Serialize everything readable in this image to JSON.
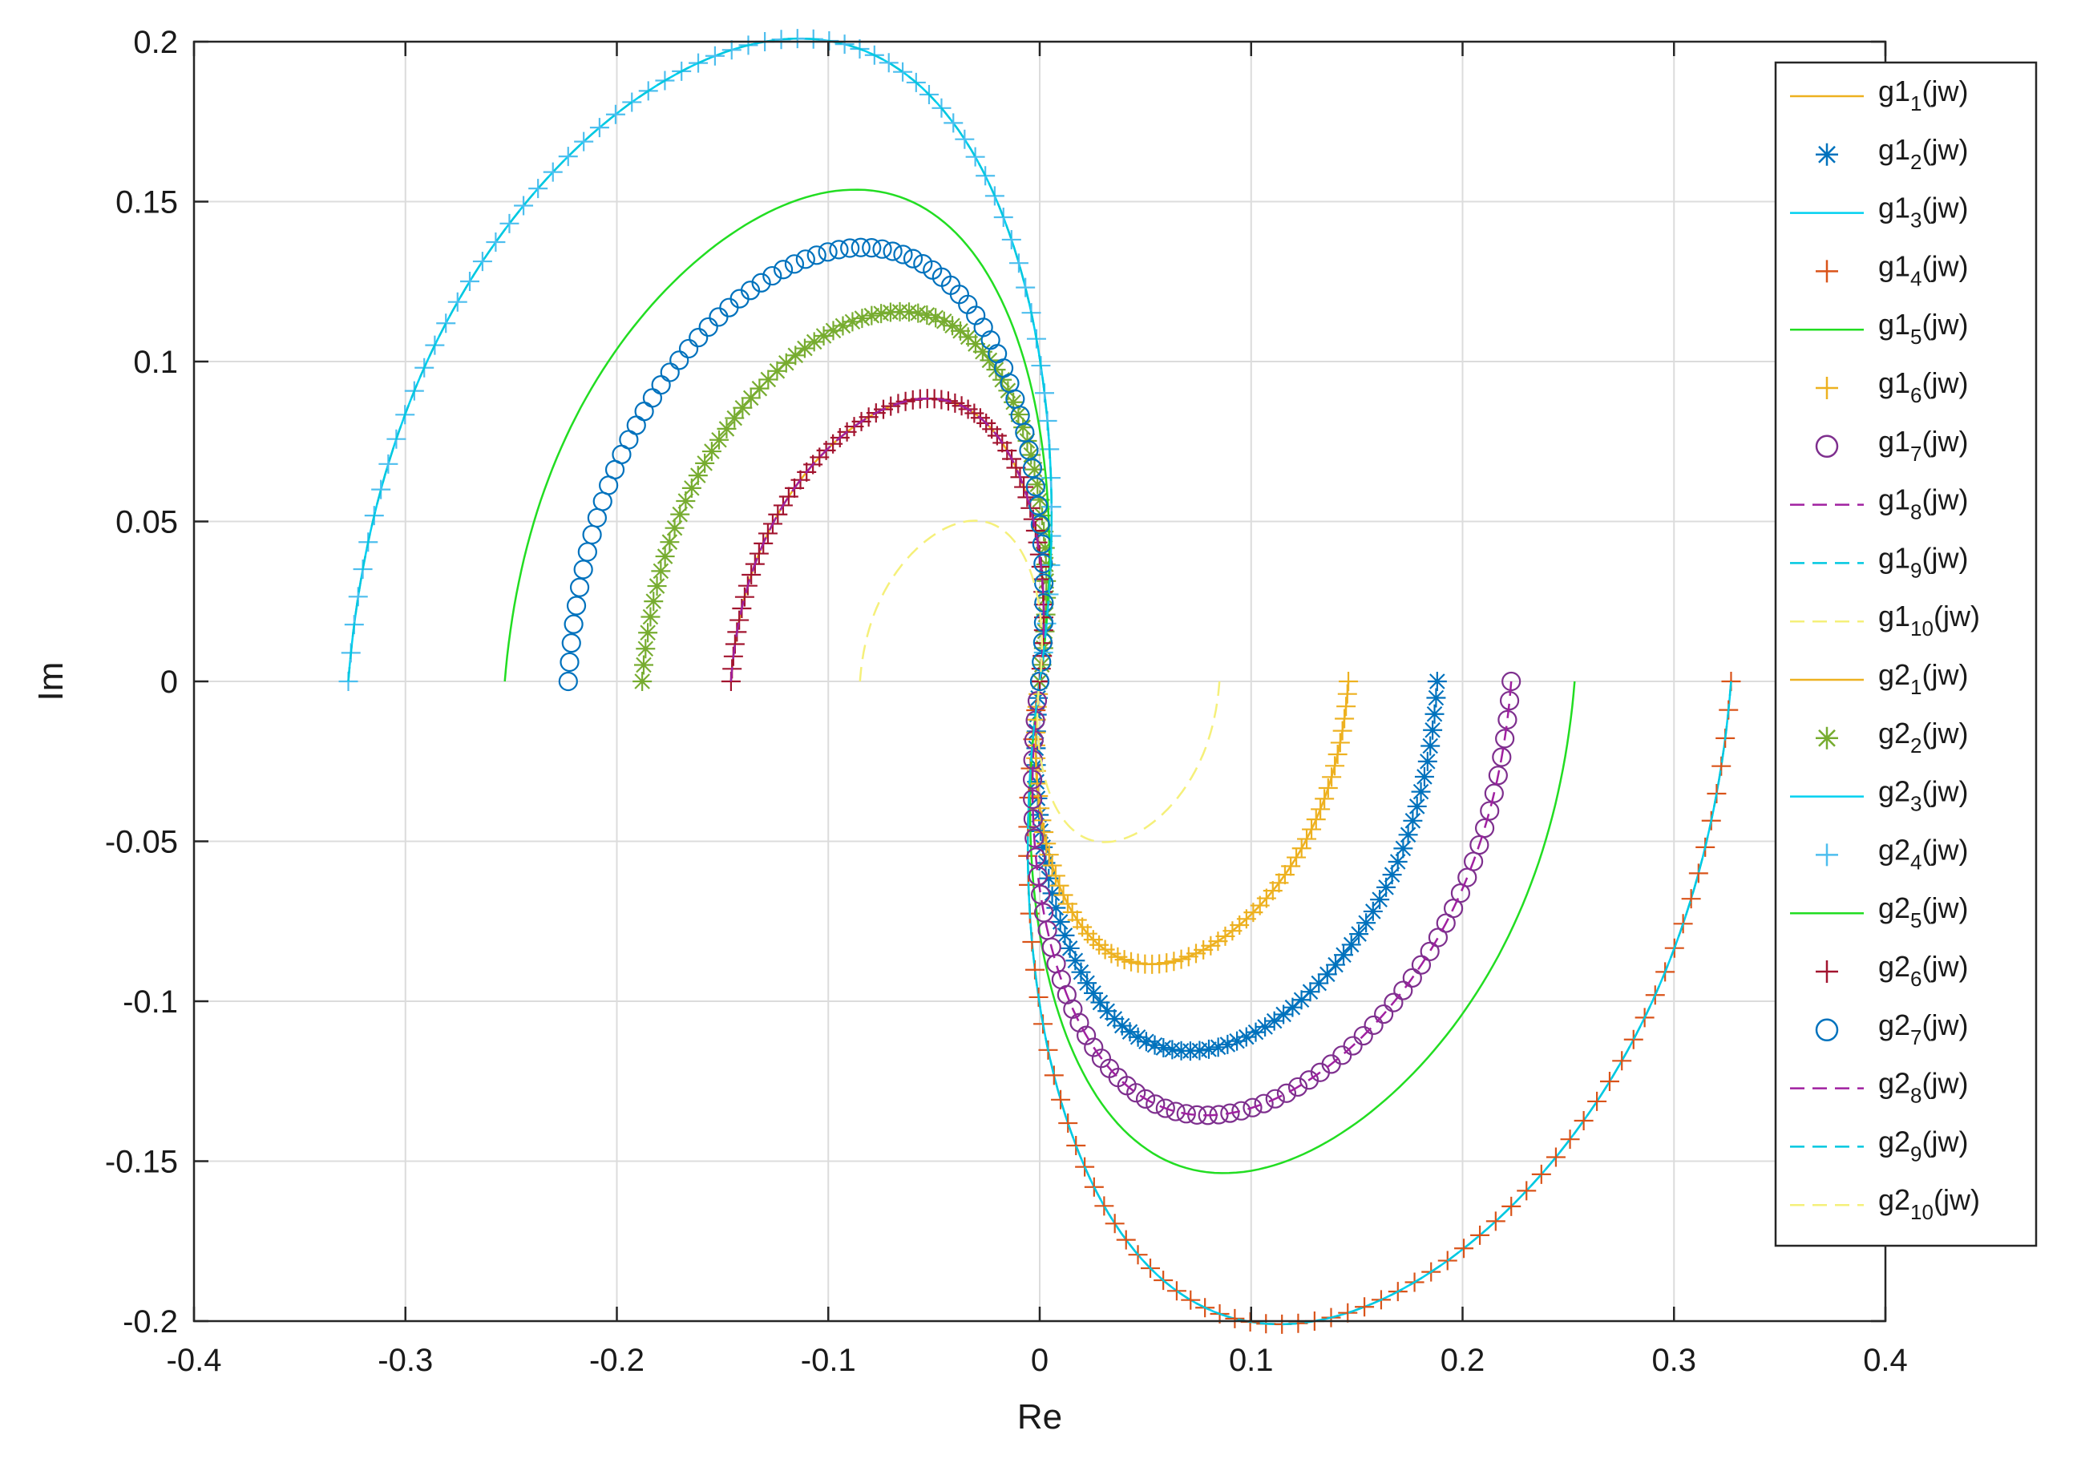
{
  "chart_data": {
    "type": "line",
    "title": "",
    "xlabel": "Re",
    "ylabel": "Im",
    "xlim": [
      -0.4,
      0.4
    ],
    "ylim": [
      -0.2,
      0.2
    ],
    "xticks": [
      -0.4,
      -0.3,
      -0.2,
      -0.1,
      0,
      0.1,
      0.2,
      0.3,
      0.4
    ],
    "xtick_labels": [
      "-0.4",
      "-0.3",
      "-0.2",
      "-0.1",
      "0",
      "0.1",
      "0.2",
      "0.3",
      "0.4"
    ],
    "yticks": [
      0.2,
      0.15,
      0.1,
      0.05,
      0,
      -0.05,
      -0.1,
      -0.15,
      -0.2
    ],
    "ytick_labels": [
      "0.2",
      "0.15",
      "0.1",
      "0.05",
      "0",
      "-0.05",
      "-0.1",
      "-0.15",
      "-0.2"
    ],
    "grid": true,
    "legend_position": "top-right",
    "series": [
      {
        "name": "g1_1(jw)",
        "base": "g1",
        "sub": "1",
        "color": "#EDB120",
        "line": "solid",
        "marker": "none",
        "x_end": 0.146,
        "y_peak": -0.088,
        "x_peak": 0.06
      },
      {
        "name": "g1_2(jw)",
        "base": "g1",
        "sub": "2",
        "color": "#0072BD",
        "line": "none",
        "marker": "asterisk",
        "x_end": 0.188,
        "y_peak": -0.115,
        "x_peak": 0.08
      },
      {
        "name": "g1_3(jw)",
        "base": "g1",
        "sub": "3",
        "color": "#00D0F0",
        "line": "solid",
        "marker": "none",
        "x_end": 0.327,
        "y_peak": -0.2,
        "x_peak": 0.13
      },
      {
        "name": "g1_4(jw)",
        "base": "g1",
        "sub": "4",
        "color": "#D95319",
        "line": "none",
        "marker": "plus",
        "x_end": 0.327,
        "y_peak": -0.2,
        "x_peak": 0.13
      },
      {
        "name": "g1_5(jw)",
        "base": "g1",
        "sub": "5",
        "color": "#22DD22",
        "line": "solid",
        "marker": "none",
        "x_end": 0.253,
        "y_peak": -0.153,
        "x_peak": 0.1
      },
      {
        "name": "g1_6(jw)",
        "base": "g1",
        "sub": "6",
        "color": "#EDB120",
        "line": "none",
        "marker": "plus",
        "x_end": 0.146,
        "y_peak": -0.088,
        "x_peak": 0.06
      },
      {
        "name": "g1_7(jw)",
        "base": "g1",
        "sub": "7",
        "color": "#7E2F8E",
        "line": "none",
        "marker": "circle",
        "x_end": 0.223,
        "y_peak": -0.135,
        "x_peak": 0.09
      },
      {
        "name": "g1_8(jw)",
        "base": "g1",
        "sub": "8",
        "color": "#A020A0",
        "line": "dashed",
        "marker": "none",
        "x_end": 0.223,
        "y_peak": -0.135,
        "x_peak": 0.09
      },
      {
        "name": "g1_9(jw)",
        "base": "g1",
        "sub": "9",
        "color": "#00C8E0",
        "line": "dashed",
        "marker": "none",
        "x_end": 0.327,
        "y_peak": -0.2,
        "x_peak": 0.13
      },
      {
        "name": "g1_10(jw)",
        "base": "g1",
        "sub": "10",
        "color": "#F5F07A",
        "line": "dashed",
        "marker": "none",
        "x_end": 0.085,
        "y_peak": -0.05,
        "x_peak": 0.035
      },
      {
        "name": "g2_1(jw)",
        "base": "g2",
        "sub": "1",
        "color": "#EDB120",
        "line": "solid",
        "marker": "none",
        "x_end": -0.146,
        "y_peak": 0.088,
        "x_peak": -0.06
      },
      {
        "name": "g2_2(jw)",
        "base": "g2",
        "sub": "2",
        "color": "#77AC30",
        "line": "none",
        "marker": "asterisk",
        "x_end": -0.188,
        "y_peak": 0.115,
        "x_peak": -0.075
      },
      {
        "name": "g2_3(jw)",
        "base": "g2",
        "sub": "3",
        "color": "#00D0F0",
        "line": "solid",
        "marker": "none",
        "x_end": -0.327,
        "y_peak": 0.2,
        "x_peak": -0.13
      },
      {
        "name": "g2_4(jw)",
        "base": "g2",
        "sub": "4",
        "color": "#4DBEEE",
        "line": "none",
        "marker": "plus",
        "x_end": -0.327,
        "y_peak": 0.2,
        "x_peak": -0.13
      },
      {
        "name": "g2_5(jw)",
        "base": "g2",
        "sub": "5",
        "color": "#22DD22",
        "line": "solid",
        "marker": "none",
        "x_end": -0.253,
        "y_peak": 0.153,
        "x_peak": -0.1
      },
      {
        "name": "g2_6(jw)",
        "base": "g2",
        "sub": "6",
        "color": "#A2142F",
        "line": "none",
        "marker": "plus",
        "x_end": -0.146,
        "y_peak": 0.088,
        "x_peak": -0.06
      },
      {
        "name": "g2_7(jw)",
        "base": "g2",
        "sub": "7",
        "color": "#0072BD",
        "line": "none",
        "marker": "circle",
        "x_end": -0.223,
        "y_peak": 0.135,
        "x_peak": -0.095
      },
      {
        "name": "g2_8(jw)",
        "base": "g2",
        "sub": "8",
        "color": "#A020A0",
        "line": "dashed",
        "marker": "none",
        "x_end": -0.146,
        "y_peak": 0.088,
        "x_peak": -0.06
      },
      {
        "name": "g2_9(jw)",
        "base": "g2",
        "sub": "9",
        "color": "#00C8E0",
        "line": "dashed",
        "marker": "none",
        "x_end": -0.327,
        "y_peak": 0.2,
        "x_peak": -0.13
      },
      {
        "name": "g2_10(jw)",
        "base": "g2",
        "sub": "10",
        "color": "#F5F07A",
        "line": "dashed",
        "marker": "none",
        "x_end": -0.085,
        "y_peak": 0.05,
        "x_peak": -0.035
      }
    ]
  }
}
